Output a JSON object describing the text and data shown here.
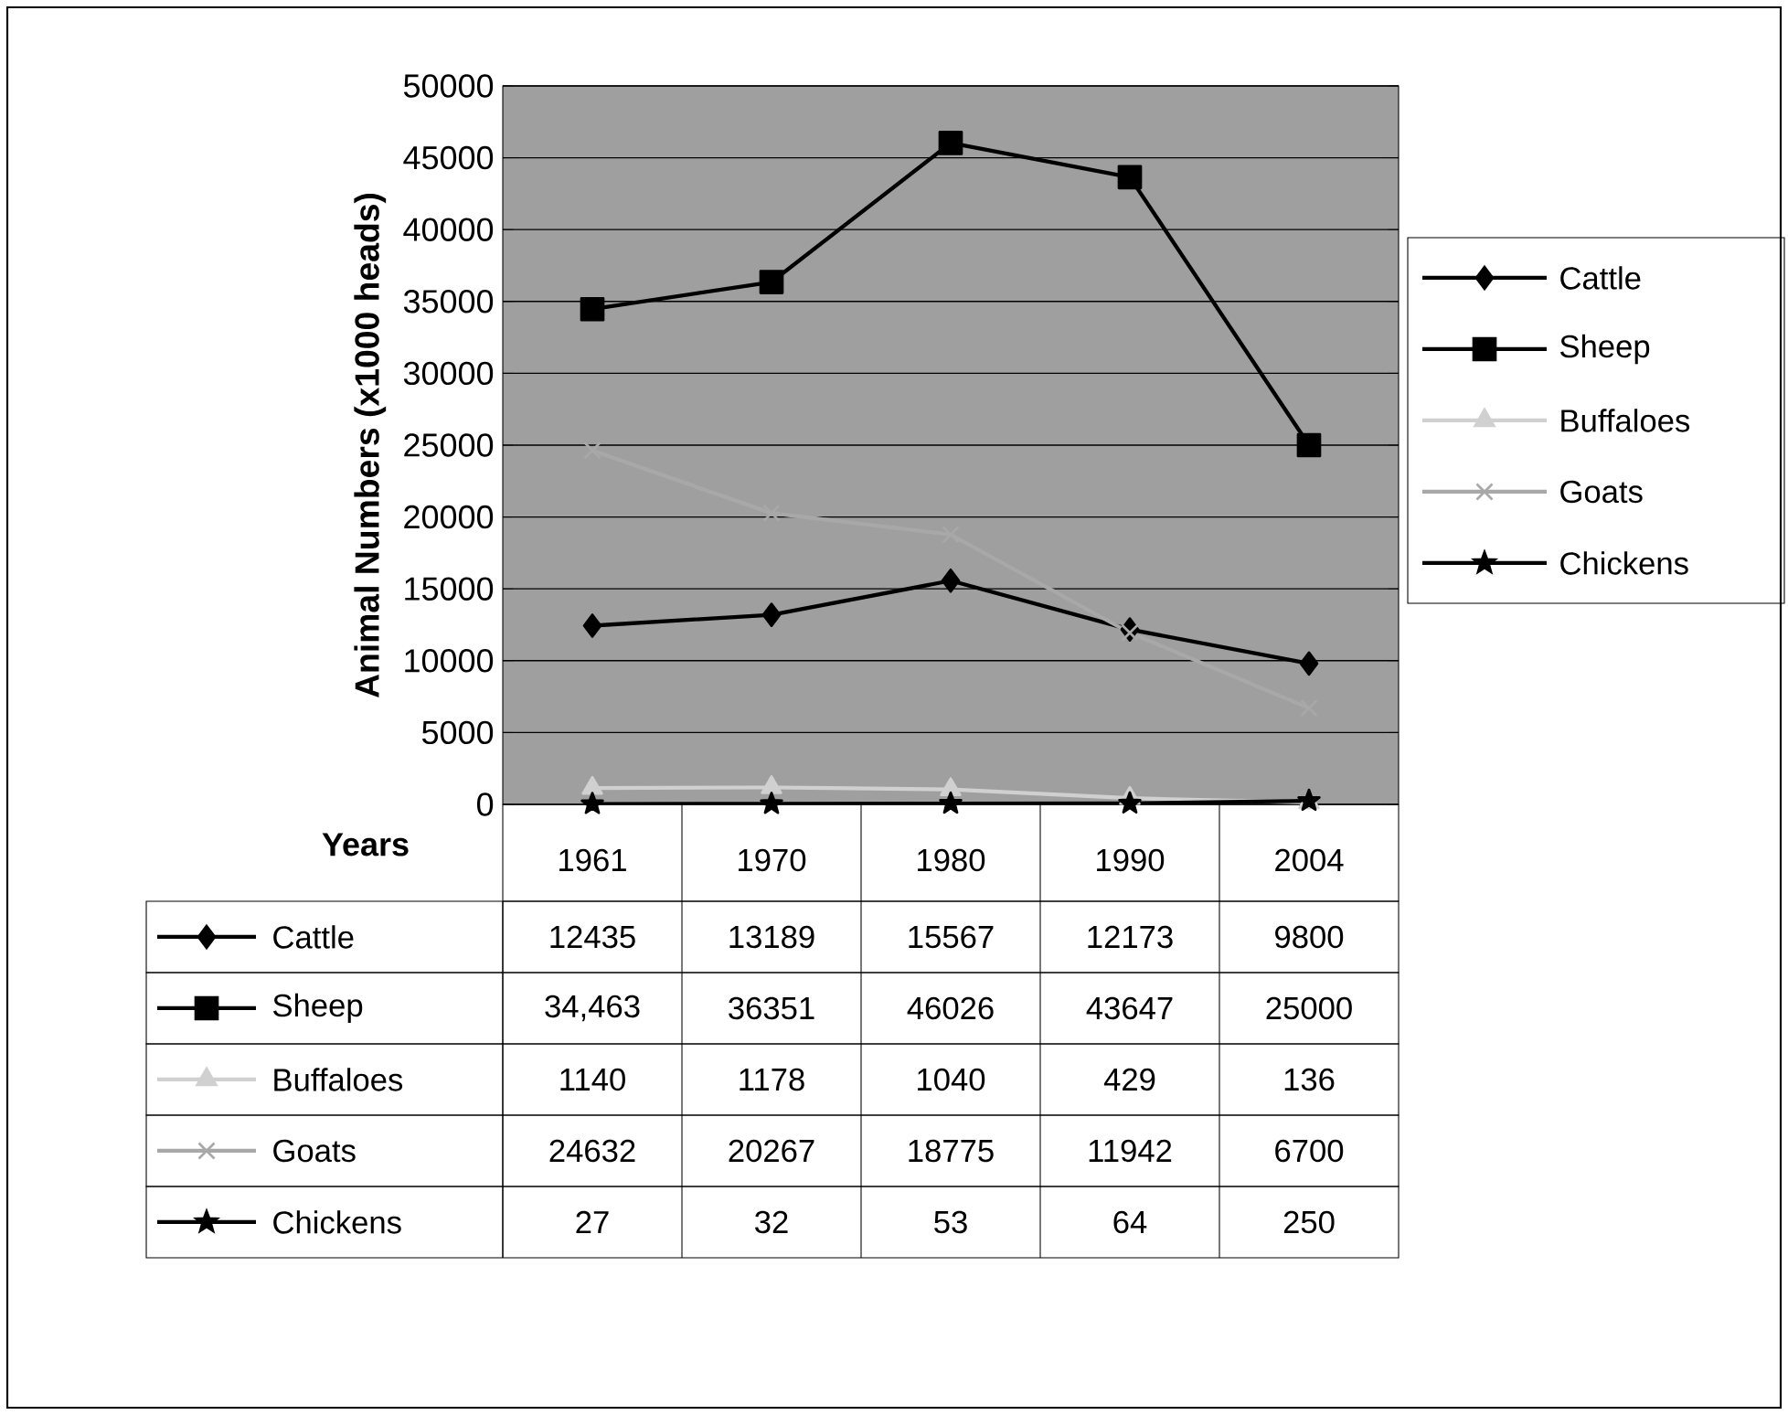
{
  "chart_data": {
    "type": "line",
    "xlabel": "Years",
    "ylabel": "Animal Numbers (x1000 heads)",
    "categories": [
      "1961",
      "1970",
      "1980",
      "1990",
      "2004"
    ],
    "ylim": [
      0,
      50000
    ],
    "yticks": [
      0,
      5000,
      10000,
      15000,
      20000,
      25000,
      30000,
      35000,
      40000,
      45000,
      50000
    ],
    "grid": "y",
    "legend": "right",
    "series": [
      {
        "name": "Cattle",
        "color": "#000000",
        "marker": "diamond",
        "values": [
          12435,
          13189,
          15567,
          12173,
          9800
        ],
        "value_labels": [
          "12435",
          "13189",
          "15567",
          "12173",
          "9800"
        ]
      },
      {
        "name": "Sheep",
        "color": "#000000",
        "marker": "square",
        "values": [
          34463,
          36351,
          46026,
          43647,
          25000
        ],
        "value_labels": [
          "34,463",
          "36351",
          "46026",
          "43647",
          "25000"
        ]
      },
      {
        "name": "Buffaloes",
        "color": "#d0d0d0",
        "marker": "triangle",
        "values": [
          1140,
          1178,
          1040,
          429,
          136
        ],
        "value_labels": [
          "1140",
          "1178",
          "1040",
          "429",
          "136"
        ]
      },
      {
        "name": "Goats",
        "color": "#a8a8a8",
        "marker": "cross",
        "values": [
          24632,
          20267,
          18775,
          11942,
          6700
        ],
        "value_labels": [
          "24632",
          "20267",
          "18775",
          "11942",
          "6700"
        ]
      },
      {
        "name": "Chickens",
        "color": "#000000",
        "marker": "star",
        "values": [
          27,
          32,
          53,
          64,
          250
        ],
        "value_labels": [
          "27",
          "32",
          "53",
          "64",
          "250"
        ]
      }
    ]
  }
}
